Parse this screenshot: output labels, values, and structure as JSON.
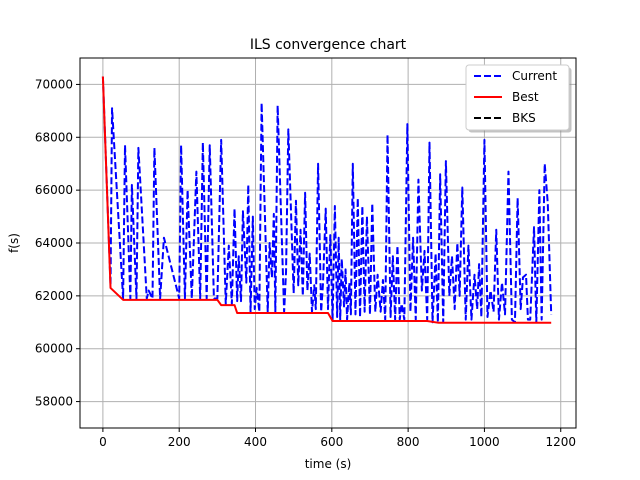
{
  "chart_data": {
    "type": "line",
    "title": "ILS convergence chart",
    "xlabel": "time (s)",
    "ylabel": "f(s)",
    "xlim": [
      -60,
      1240
    ],
    "ylim": [
      57000,
      71000
    ],
    "xticks": [
      0,
      200,
      400,
      600,
      800,
      1000,
      1200
    ],
    "yticks": [
      58000,
      60000,
      62000,
      64000,
      66000,
      68000,
      70000
    ],
    "grid": true,
    "legend_position": "top-right",
    "series": [
      {
        "name": "Current",
        "color": "#0000ff",
        "style": "dashed",
        "points": [
          [
            0,
            70300
          ],
          [
            20,
            62400
          ],
          [
            24,
            69100
          ],
          [
            53,
            61900
          ],
          [
            58,
            67700
          ],
          [
            72,
            61900
          ],
          [
            76,
            66200
          ],
          [
            88,
            61900
          ],
          [
            93,
            67600
          ],
          [
            115,
            61900
          ],
          [
            120,
            62200
          ],
          [
            130,
            61900
          ],
          [
            135,
            67600
          ],
          [
            150,
            61900
          ],
          [
            160,
            64200
          ],
          [
            200,
            61900
          ],
          [
            205,
            67700
          ],
          [
            215,
            61900
          ],
          [
            222,
            66000
          ],
          [
            233,
            61900
          ],
          [
            245,
            66700
          ],
          [
            255,
            61900
          ],
          [
            262,
            67800
          ],
          [
            272,
            61900
          ],
          [
            280,
            67700
          ],
          [
            291,
            61900
          ],
          [
            300,
            61900
          ],
          [
            310,
            67900
          ],
          [
            322,
            61700
          ],
          [
            330,
            63900
          ],
          [
            338,
            61700
          ],
          [
            345,
            65300
          ],
          [
            352,
            61800
          ],
          [
            356,
            63500
          ],
          [
            362,
            61800
          ],
          [
            367,
            65200
          ],
          [
            376,
            62500
          ],
          [
            381,
            66200
          ],
          [
            387,
            61400
          ],
          [
            393,
            65000
          ],
          [
            398,
            61500
          ],
          [
            403,
            62300
          ],
          [
            410,
            61400
          ],
          [
            416,
            69300
          ],
          [
            432,
            61400
          ],
          [
            437,
            64000
          ],
          [
            443,
            62700
          ],
          [
            448,
            65100
          ],
          [
            452,
            61400
          ],
          [
            458,
            69200
          ],
          [
            475,
            61400
          ],
          [
            480,
            62900
          ],
          [
            486,
            68300
          ],
          [
            500,
            62100
          ],
          [
            506,
            65600
          ],
          [
            512,
            62400
          ],
          [
            518,
            64500
          ],
          [
            524,
            62000
          ],
          [
            530,
            65900
          ],
          [
            536,
            62200
          ],
          [
            542,
            63600
          ],
          [
            548,
            61400
          ],
          [
            554,
            62400
          ],
          [
            558,
            61500
          ],
          [
            564,
            67000
          ],
          [
            572,
            61400
          ],
          [
            577,
            62500
          ],
          [
            584,
            65300
          ],
          [
            590,
            61500
          ],
          [
            596,
            64300
          ],
          [
            602,
            61100
          ],
          [
            608,
            65400
          ],
          [
            614,
            61200
          ],
          [
            618,
            64200
          ],
          [
            622,
            61100
          ],
          [
            626,
            63400
          ],
          [
            632,
            61600
          ],
          [
            636,
            63000
          ],
          [
            640,
            61100
          ],
          [
            646,
            62500
          ],
          [
            650,
            61300
          ],
          [
            655,
            67000
          ],
          [
            662,
            61300
          ],
          [
            668,
            65700
          ],
          [
            674,
            61200
          ],
          [
            680,
            65400
          ],
          [
            686,
            61400
          ],
          [
            692,
            65000
          ],
          [
            700,
            61300
          ],
          [
            706,
            65500
          ],
          [
            714,
            61400
          ],
          [
            720,
            62800
          ],
          [
            728,
            61400
          ],
          [
            734,
            62600
          ],
          [
            740,
            61100
          ],
          [
            746,
            68100
          ],
          [
            754,
            61200
          ],
          [
            760,
            63500
          ],
          [
            766,
            61100
          ],
          [
            772,
            63900
          ],
          [
            778,
            61100
          ],
          [
            783,
            61700
          ],
          [
            790,
            61100
          ],
          [
            798,
            68500
          ],
          [
            806,
            61400
          ],
          [
            813,
            64200
          ],
          [
            820,
            61100
          ],
          [
            827,
            66400
          ],
          [
            836,
            62200
          ],
          [
            843,
            63700
          ],
          [
            850,
            61100
          ],
          [
            856,
            67800
          ],
          [
            864,
            61000
          ],
          [
            872,
            63600
          ],
          [
            878,
            61000
          ],
          [
            884,
            66600
          ],
          [
            892,
            61000
          ],
          [
            899,
            67100
          ],
          [
            908,
            62000
          ],
          [
            915,
            63500
          ],
          [
            922,
            61500
          ],
          [
            929,
            64000
          ],
          [
            935,
            62000
          ],
          [
            942,
            66100
          ],
          [
            951,
            61100
          ],
          [
            958,
            63900
          ],
          [
            966,
            61100
          ],
          [
            974,
            62800
          ],
          [
            981,
            61500
          ],
          [
            986,
            63200
          ],
          [
            992,
            61200
          ],
          [
            1000,
            67900
          ],
          [
            1008,
            61200
          ],
          [
            1016,
            62200
          ],
          [
            1024,
            61400
          ],
          [
            1031,
            64500
          ],
          [
            1038,
            61100
          ],
          [
            1046,
            62500
          ],
          [
            1054,
            61300
          ],
          [
            1063,
            66700
          ],
          [
            1072,
            61100
          ],
          [
            1080,
            61000
          ],
          [
            1087,
            65700
          ],
          [
            1095,
            61500
          ],
          [
            1101,
            62700
          ],
          [
            1109,
            62800
          ],
          [
            1114,
            61100
          ],
          [
            1120,
            61100
          ],
          [
            1130,
            64600
          ],
          [
            1136,
            61000
          ],
          [
            1144,
            66000
          ],
          [
            1150,
            61100
          ],
          [
            1158,
            67000
          ],
          [
            1166,
            65500
          ],
          [
            1175,
            61300
          ]
        ]
      },
      {
        "name": "Best",
        "color": "#ff0000",
        "style": "solid",
        "points": [
          [
            0,
            70300
          ],
          [
            20,
            62300
          ],
          [
            53,
            61850
          ],
          [
            300,
            61850
          ],
          [
            310,
            61650
          ],
          [
            345,
            61650
          ],
          [
            352,
            61350
          ],
          [
            590,
            61350
          ],
          [
            602,
            61050
          ],
          [
            850,
            61050
          ],
          [
            880,
            60980
          ],
          [
            1175,
            60980
          ]
        ]
      },
      {
        "name": "BKS",
        "color": "#000000",
        "style": "dashed",
        "points": [
          [
            -60,
            56950
          ],
          [
            1240,
            56950
          ]
        ]
      }
    ]
  }
}
